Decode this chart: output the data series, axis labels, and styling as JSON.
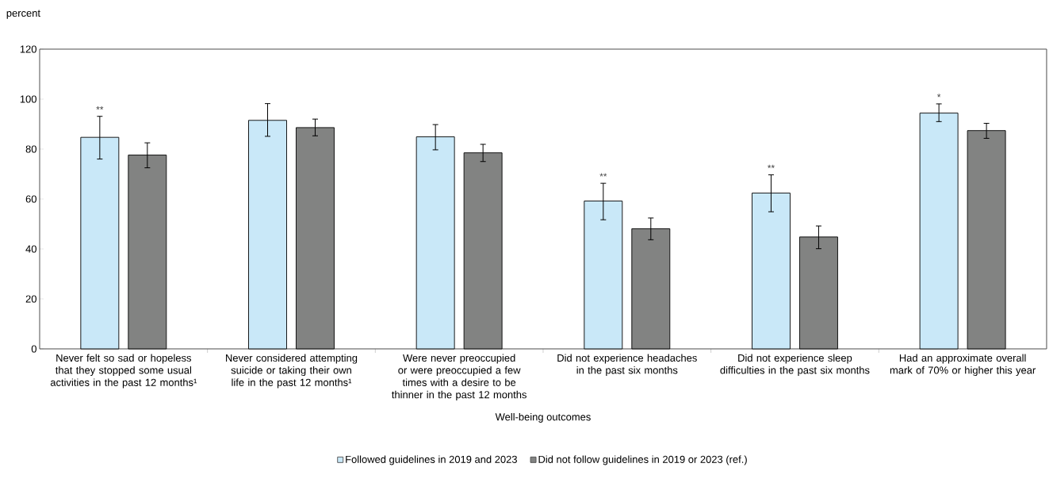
{
  "chart_data": {
    "type": "bar",
    "ylabel": "percent",
    "xlabel": "Well-being outcomes",
    "categories": [
      "Never felt so sad or hopeless that they stopped some usual activities in the past 12 months¹",
      "Never considered attempting suicide or taking their own life in the past 12 months¹",
      "Were never preoccupied or were preoccupied a few times with a desire to be thinner in the past 12 months",
      "Did not experience headaches in the past six months",
      "Did not experience sleep difficulties in the past six months",
      "Had an approximate overall mark of 70% or higher this year"
    ],
    "series": [
      {
        "name": "Followed guidelines in 2019 and 2023",
        "color": "#c9e8f8",
        "values": [
          84.7,
          91.5,
          84.9,
          59.2,
          62.4,
          94.4
        ],
        "value_labels": [
          "**",
          null,
          null,
          "**",
          "**",
          "*"
        ],
        "errors": [
          [
            76.0,
            93.1
          ],
          [
            85.1,
            98.2
          ],
          [
            79.7,
            89.8
          ],
          [
            51.7,
            66.3
          ],
          [
            54.9,
            69.7
          ],
          [
            91.0,
            98.1
          ]
        ]
      },
      {
        "name": "Did not follow guidelines in 2019 or 2023 (ref.)",
        "color": "#828382",
        "values": [
          77.6,
          88.6,
          78.5,
          48.1,
          44.8,
          87.4
        ],
        "errors": [
          [
            72.5,
            82.5
          ],
          [
            85.3,
            92.0
          ],
          [
            75.0,
            81.9
          ],
          [
            43.7,
            52.4
          ],
          [
            40.1,
            49.2
          ],
          [
            84.3,
            90.3
          ]
        ]
      }
    ],
    "ylim": [
      0,
      120
    ],
    "yticks": [
      0,
      20,
      40,
      60,
      80,
      100,
      120
    ],
    "grid": false,
    "legend": "bottom"
  }
}
